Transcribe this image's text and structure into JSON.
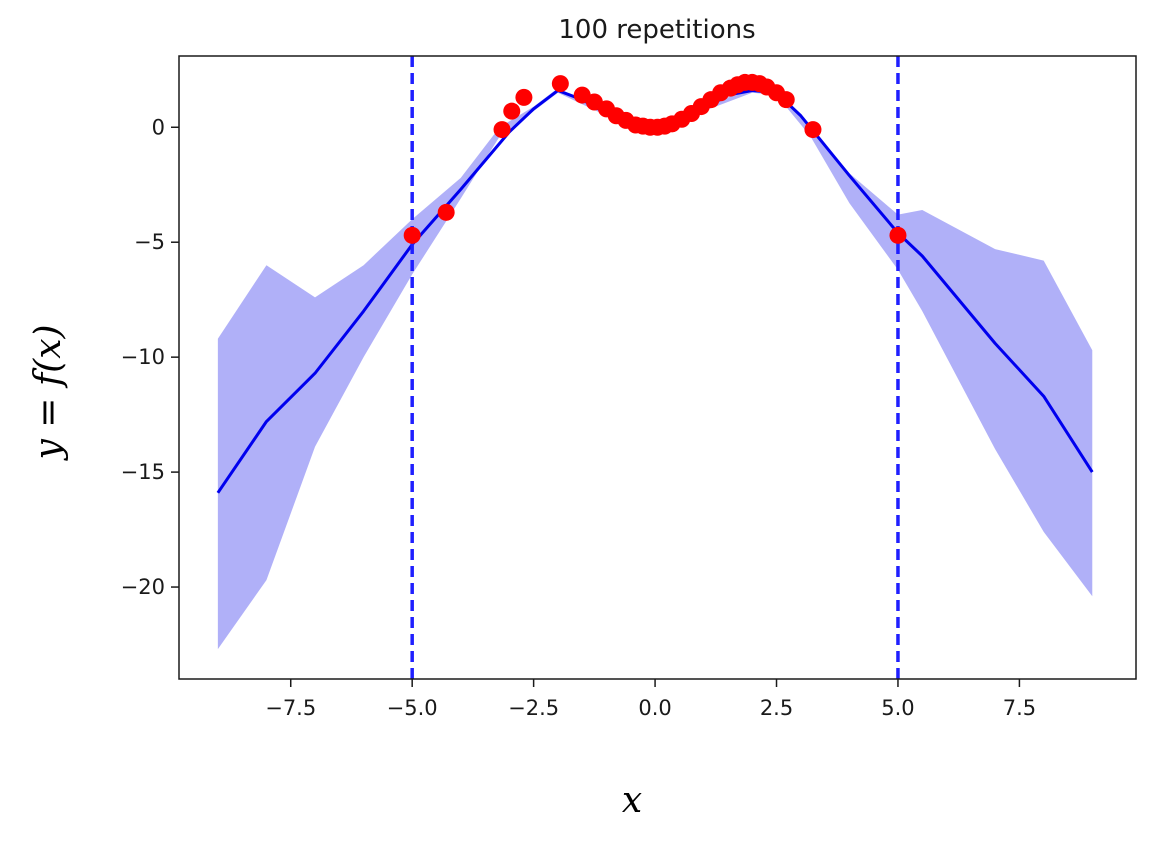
{
  "chart_data": {
    "type": "line",
    "title": "100 repetitions",
    "xlabel": "x",
    "ylabel": "y = f(x)",
    "xlim": [
      -9.8,
      9.9
    ],
    "ylim": [
      -24,
      3.1
    ],
    "xticks": [
      -7.5,
      -5.0,
      -2.5,
      0.0,
      2.5,
      5.0,
      7.5
    ],
    "xtick_labels": [
      "−7.5",
      "−5.0",
      "−2.5",
      "0.0",
      "2.5",
      "5.0",
      "7.5"
    ],
    "yticks": [
      0,
      -5,
      -10,
      -15,
      -20
    ],
    "ytick_labels": [
      "0",
      "−5",
      "−10",
      "−15",
      "−20"
    ],
    "grid": false,
    "colors": {
      "mean_line": "#0000ee",
      "band": "#7b7bf4",
      "points": "#ff0000",
      "vlines": "#1f1fff"
    },
    "vlines": [
      -5.0,
      5.0
    ],
    "mean_line": {
      "x": [
        -9,
        -8,
        -7,
        -6,
        -5,
        -4,
        -3,
        -2.5,
        -2,
        -1.5,
        -1,
        -0.5,
        0,
        0.5,
        1,
        1.5,
        2,
        2.5,
        3,
        4,
        5,
        5.5,
        7,
        8,
        9
      ],
      "y": [
        -15.9,
        -12.8,
        -10.7,
        -8.0,
        -5.1,
        -2.7,
        -0.2,
        0.8,
        1.6,
        1.2,
        0.6,
        0.2,
        0.1,
        0.3,
        0.8,
        1.4,
        1.6,
        1.5,
        0.5,
        -2.1,
        -4.6,
        -5.6,
        -9.4,
        -11.7,
        -15.0
      ]
    },
    "confidence_band": {
      "x": [
        -9,
        -8,
        -7,
        -6,
        -5,
        -4,
        -3.2,
        -2.5,
        -2,
        -1,
        0,
        1,
        2,
        2.5,
        3.2,
        4,
        5,
        5.5,
        7,
        8,
        9
      ],
      "upper": [
        -9.2,
        -6.0,
        -7.4,
        -6.0,
        -4.0,
        -2.2,
        0.0,
        0.9,
        1.7,
        0.7,
        0.2,
        0.9,
        1.7,
        1.6,
        0.0,
        -2.0,
        -3.8,
        -3.6,
        -5.3,
        -5.8,
        -9.7
      ],
      "lower": [
        -22.7,
        -19.7,
        -13.9,
        -10.0,
        -6.4,
        -3.1,
        -0.4,
        0.7,
        1.5,
        0.5,
        0.0,
        0.7,
        1.5,
        1.4,
        -0.4,
        -3.3,
        -6.2,
        -8.0,
        -14.0,
        -17.6,
        -20.4
      ]
    },
    "points": {
      "x": [
        -5.0,
        -4.3,
        -3.15,
        -2.95,
        -2.7,
        -1.95,
        -1.5,
        -1.25,
        -1.0,
        -0.8,
        -0.6,
        -0.4,
        -0.25,
        -0.1,
        0.05,
        0.2,
        0.35,
        0.55,
        0.75,
        0.95,
        1.15,
        1.35,
        1.55,
        1.7,
        1.85,
        2.0,
        2.15,
        2.3,
        2.5,
        2.7,
        3.25,
        5.0
      ],
      "y": [
        -4.7,
        -3.7,
        -0.1,
        0.7,
        1.3,
        1.9,
        1.4,
        1.1,
        0.8,
        0.5,
        0.3,
        0.1,
        0.05,
        0.0,
        0.0,
        0.05,
        0.15,
        0.35,
        0.6,
        0.9,
        1.2,
        1.5,
        1.7,
        1.85,
        1.95,
        1.95,
        1.9,
        1.75,
        1.5,
        1.2,
        -0.1,
        -4.7
      ]
    }
  }
}
